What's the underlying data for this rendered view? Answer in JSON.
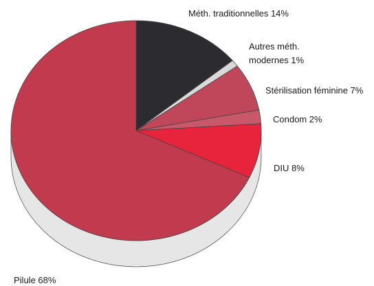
{
  "chart_data": {
    "type": "pie",
    "title": "",
    "slices": [
      {
        "label": "Méth. traditionnelles",
        "value": 14,
        "display": "Méth. traditionnelles  14%",
        "color": "#2b2b30"
      },
      {
        "label": "Autres méth. modernes",
        "value": 1,
        "display": "Autres méth.|modernes  1%",
        "color": "#d9d9d9"
      },
      {
        "label": "Stérilisation féminine",
        "value": 7,
        "display": "Stérilisation féminine  7%",
        "color": "#c0465a"
      },
      {
        "label": "Condom",
        "value": 2,
        "display": "Condom  2%",
        "color": "#c8586a"
      },
      {
        "label": "DIU",
        "value": 8,
        "display": "DIU  8%",
        "color": "#e8243c"
      },
      {
        "label": "Pilule",
        "value": 68,
        "display": "Pilule  68%",
        "color": "#c23a4e"
      }
    ],
    "side_color": "#e6e6e6",
    "start": "12 o'clock",
    "direction": "clockwise",
    "style": "3d"
  }
}
